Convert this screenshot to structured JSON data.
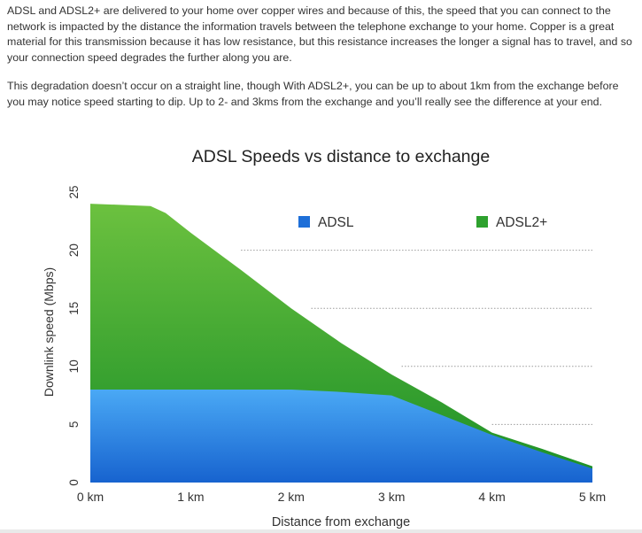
{
  "article": {
    "paragraph_1": "ADSL and ADSL2+ are delivered to your home over copper wires and because of this, the speed that you can connect to the network is impacted by the distance the information travels between the telephone exchange to your home. Copper is a great material for this transmission because it has low resistance, but this resistance increases the longer a signal has to travel, and so your connection speed degrades the further along you are.",
    "paragraph_2": "This degradation doesn’t occur on a straight line, though With ADSL2+, you can be up to about 1km from the exchange before you may notice speed starting to dip. Up to 2- and 3kms from the exchange and you’ll really see the difference at your end."
  },
  "chart_data": {
    "type": "area",
    "title": "ADSL Speeds vs distance to exchange",
    "xlabel": "Distance from exchange",
    "ylabel": "Downlink speed (Mbps)",
    "x_ticks": [
      "0 km",
      "1 km",
      "2 km",
      "3 km",
      "4 km",
      "5 km"
    ],
    "y_ticks": [
      "0",
      "5",
      "10",
      "15",
      "20",
      "25"
    ],
    "xlim": [
      0,
      5
    ],
    "ylim": [
      0,
      25
    ],
    "legend_position": "top-right",
    "grid": "dotted horizontal lines",
    "series": [
      {
        "name": "ADSL2+",
        "color": "#2ea12e",
        "x": [
          0,
          0.6,
          0.75,
          1.0,
          1.5,
          2.0,
          2.5,
          3.0,
          3.5,
          4.0,
          4.5,
          5.0
        ],
        "values": [
          24,
          23.8,
          23.2,
          21.5,
          18.3,
          15.0,
          12.0,
          9.3,
          6.9,
          4.3,
          2.9,
          1.4
        ]
      },
      {
        "name": "ADSL",
        "color": "#1e6fd8",
        "x": [
          0,
          1.0,
          2.0,
          2.5,
          3.0,
          3.5,
          4.0,
          4.5,
          5.0
        ],
        "values": [
          8,
          8,
          8,
          7.8,
          7.5,
          5.8,
          4.1,
          2.6,
          1.2
        ]
      }
    ]
  }
}
